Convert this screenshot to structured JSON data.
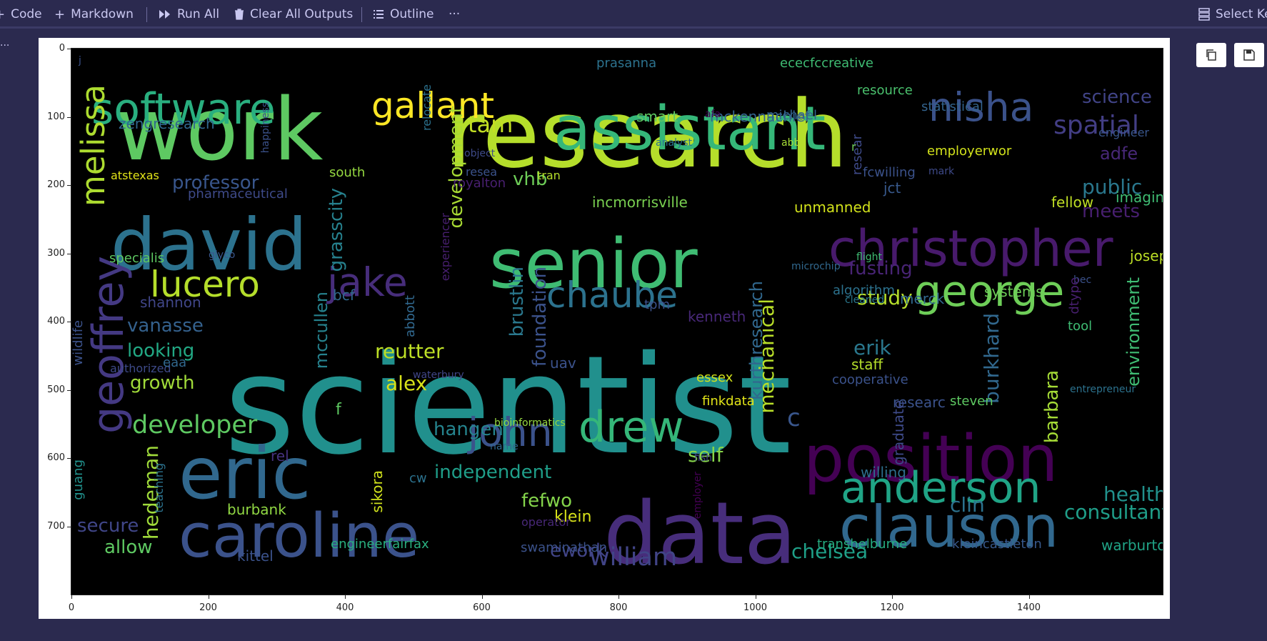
{
  "toolbar": {
    "code_label": "Code",
    "markdown_label": "Markdown",
    "run_all_label": "Run All",
    "clear_outputs_label": "Clear All Outputs",
    "outline_label": "Outline",
    "more_label": "···",
    "select_kernel_label": "Select Ke"
  },
  "sidebar": {
    "more_label": "..."
  },
  "plot": {
    "yticks": [
      "0",
      "100",
      "200",
      "300",
      "400",
      "500",
      "600",
      "700"
    ],
    "xticks": [
      "0",
      "200",
      "400",
      "600",
      "800",
      "1000",
      "1200",
      "1400"
    ],
    "words": [
      [
        "scientist",
        "#21908d"
      ],
      [
        "research",
        "#b5de2b"
      ],
      [
        "work",
        "#5ec962"
      ],
      [
        "data",
        "#472d7b"
      ],
      [
        "david",
        "#2c728e"
      ],
      [
        "eric",
        "#31688e"
      ],
      [
        "senior",
        "#3fbc73"
      ],
      [
        "position",
        "#440154"
      ],
      [
        "caroline",
        "#3b528b"
      ],
      [
        "assistant",
        "#35b779"
      ],
      [
        "clauson",
        "#31688e"
      ],
      [
        "christopher",
        "#481a6c"
      ],
      [
        "software",
        "#29af7f"
      ],
      [
        "geoffrey",
        "#443983"
      ],
      [
        "anderson",
        "#20a486"
      ],
      [
        "george",
        "#6ece58"
      ],
      [
        "nisha",
        "#3b528b"
      ],
      [
        "gallant",
        "#fde725"
      ],
      [
        "lucero",
        "#b5de2b"
      ],
      [
        "jake",
        "#472d7b"
      ],
      [
        "drew",
        "#35b779"
      ],
      [
        "john",
        "#3b528b"
      ],
      [
        "chaube",
        "#2c728e"
      ],
      [
        "melissa",
        "#addc30"
      ],
      [
        "developer",
        "#5ec962"
      ],
      [
        "william",
        "#414487"
      ],
      [
        "spatial",
        "#433e85"
      ],
      [
        "science",
        "#414487"
      ],
      [
        "tam",
        "#c2df23"
      ],
      [
        "professor",
        "#39568c"
      ],
      [
        "public",
        "#2a788e"
      ],
      [
        "meets",
        "#481f70"
      ],
      [
        "adfe",
        "#482878"
      ],
      [
        "vanasse",
        "#34618d"
      ],
      [
        "looking",
        "#22a884"
      ],
      [
        "growth",
        "#a0da39"
      ],
      [
        "reutter",
        "#bddf26"
      ],
      [
        "alex",
        "#d8e219"
      ],
      [
        "hangen",
        "#25848e"
      ],
      [
        "independent",
        "#1f9e89"
      ],
      [
        "fefwo",
        "#84d44b"
      ],
      [
        "self",
        "#86d549"
      ],
      [
        "mechanical",
        "#b8de29"
      ],
      [
        "erik",
        "#2a788e"
      ],
      [
        "burkhard",
        "#31688e"
      ],
      [
        "barbara",
        "#a5db36"
      ],
      [
        "environment",
        "#3fbc73"
      ],
      [
        "study",
        "#b5de2b"
      ],
      [
        "fusting",
        "#482475"
      ],
      [
        "health",
        "#21918c"
      ],
      [
        "consultant",
        "#1f9e89"
      ],
      [
        "clin",
        "#2c728e"
      ],
      [
        "chelsea",
        "#1fa088"
      ],
      [
        "ework",
        "#414487"
      ],
      [
        "klein",
        "#d8e219"
      ],
      [
        "secure",
        "#404688"
      ],
      [
        "allow",
        "#5ec962"
      ],
      [
        "burbank",
        "#90d743"
      ],
      [
        "kittel",
        "#3b528b"
      ],
      [
        "hedeman",
        "#9fda3a"
      ],
      [
        "mccullen",
        "#26828e"
      ],
      [
        "brustlin",
        "#2a788e"
      ],
      [
        "foundation",
        "#3b528b"
      ],
      [
        "development",
        "#a8db34"
      ],
      [
        "kurthresearch",
        "#31688e"
      ],
      [
        "grasscity",
        "#26818e"
      ],
      [
        "vhb",
        "#6ece58"
      ],
      [
        "incmorrisville",
        "#7ad151"
      ],
      [
        "unmanned",
        "#d2e21b"
      ],
      [
        "fellow",
        "#c0df25"
      ],
      [
        "imaging",
        "#3fbc73"
      ],
      [
        "joseph",
        "#bddf26"
      ],
      [
        "systems",
        "#6ece58"
      ],
      [
        "merck",
        "#31688e"
      ],
      [
        "algorithm",
        "#2c728e"
      ],
      [
        "staff",
        "#b5de2b"
      ],
      [
        "cooperative",
        "#3b528b"
      ],
      [
        "essex",
        "#d2e21b"
      ],
      [
        "finkdata",
        "#e2e418"
      ],
      [
        "steven",
        "#5ec962"
      ],
      [
        "researc",
        "#3b528b"
      ],
      [
        "graduate",
        "#3e4a89"
      ],
      [
        "willing",
        "#2e6e8e"
      ],
      [
        "transhelburne",
        "#26ad81"
      ],
      [
        "kleincastleton",
        "#38598c"
      ],
      [
        "warburton",
        "#20a386"
      ],
      [
        "engineerfairfax",
        "#29af7f"
      ],
      [
        "swaminathan",
        "#3b528b"
      ],
      [
        "operator",
        "#482878"
      ],
      [
        "sikora",
        "#d0e11c"
      ],
      [
        "cw",
        "#2c728e"
      ],
      [
        "rel",
        "#46327e"
      ],
      [
        "bioinformatics",
        "#95d840"
      ],
      [
        "employer",
        "#440154"
      ],
      [
        "fish",
        "#404688"
      ],
      [
        "name",
        "#31688e"
      ],
      [
        "waterbury",
        "#404688"
      ],
      [
        "uav",
        "#3b528b"
      ],
      [
        "kenneth",
        "#482878"
      ],
      [
        "tpm",
        "#3b528b"
      ],
      [
        "bcf",
        "#31688e"
      ],
      [
        "shannon",
        "#404688"
      ],
      [
        "specialis",
        "#5ec962"
      ],
      [
        "glyco",
        "#39568c"
      ],
      [
        "pharmaceutical",
        "#3e4a89"
      ],
      [
        "atstexas",
        "#e2e418"
      ],
      [
        "south",
        "#95d840"
      ],
      [
        "royalton",
        "#481f70"
      ],
      [
        "resea",
        "#3b528b"
      ],
      [
        "object",
        "#3e4a89"
      ],
      [
        "tran",
        "#b5de2b"
      ],
      [
        "prasanna",
        "#2c728e"
      ],
      [
        "smart",
        "#5ec962"
      ],
      [
        "mckennachief",
        "#33638d"
      ],
      [
        "michael",
        "#33638d"
      ],
      [
        "ececfccreative",
        "#3fbc73"
      ],
      [
        "resource",
        "#4ac16d"
      ],
      [
        "statistical",
        "#33638d"
      ],
      [
        "engineer",
        "#39568c"
      ],
      [
        "employerwor",
        "#d2e21b"
      ],
      [
        "mark",
        "#3e4a89"
      ],
      [
        "fcwilling",
        "#3b528b"
      ],
      [
        "jct",
        "#38598c"
      ],
      [
        "abb",
        "#a5db36"
      ],
      [
        "analyst",
        "#2c728e"
      ],
      [
        "afa",
        "#440154"
      ],
      [
        "resear",
        "#3e4a89"
      ],
      [
        "microchip",
        "#31688e"
      ],
      [
        "flight",
        "#3fbc73"
      ],
      [
        "cleaned",
        "#2a788e"
      ],
      [
        "bec",
        "#3b528b"
      ],
      [
        "tool",
        "#3fbc73"
      ],
      [
        "dtype",
        "#481f70"
      ],
      [
        "entrepreneur",
        "#2c728e"
      ],
      [
        "authorized",
        "#3e4a89"
      ],
      [
        "eaa",
        "#31688e"
      ],
      [
        "guang",
        "#21918c"
      ],
      [
        "teaching",
        "#2c728e"
      ],
      [
        "wildlife",
        "#3b528b"
      ],
      [
        "happiness",
        "#3b528b"
      ],
      [
        "relocate",
        "#2c728e"
      ],
      [
        "experiencer",
        "#481f70"
      ],
      [
        "abbott",
        "#31688e"
      ],
      [
        "zengresearch",
        "#31688e"
      ],
      [
        "f",
        "#5ec962"
      ],
      [
        "c",
        "#39568c"
      ],
      [
        "r",
        "#6ece58"
      ],
      [
        "j",
        "#3b528b"
      ]
    ]
  }
}
